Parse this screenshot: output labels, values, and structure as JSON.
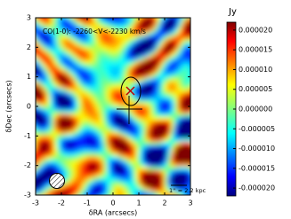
{
  "chart_data": {
    "type": "image",
    "annotation": "CO(1-0): -2260<V<-2230  km/s",
    "scale_label": "1'' = 2.2 kpc",
    "xlabel": "δRA (arcsecs)",
    "ylabel": "δDec (arcsecs)",
    "xlim": [
      -3,
      3
    ],
    "ylim": [
      -3,
      3
    ],
    "xticks": [
      -3,
      -2,
      -1,
      0,
      1,
      2,
      3
    ],
    "yticks": [
      -3,
      -2,
      -1,
      0,
      1,
      2,
      3
    ],
    "colorbar": {
      "label": "Jy",
      "lim": [
        -2.2e-05,
        2.2e-05
      ],
      "ticks": [
        {
          "value": 2e-05,
          "label": "0.000020"
        },
        {
          "value": 1.5e-05,
          "label": "0.000015"
        },
        {
          "value": 1e-05,
          "label": "0.000010"
        },
        {
          "value": 5e-06,
          "label": "0.000005"
        },
        {
          "value": 0,
          "label": "0.000000"
        },
        {
          "value": -5e-06,
          "label": "-0.000005"
        },
        {
          "value": -1e-05,
          "label": "-0.000010"
        },
        {
          "value": -1.5e-05,
          "label": "-0.000015"
        },
        {
          "value": -2e-05,
          "label": "-0.000020"
        }
      ]
    }
  }
}
